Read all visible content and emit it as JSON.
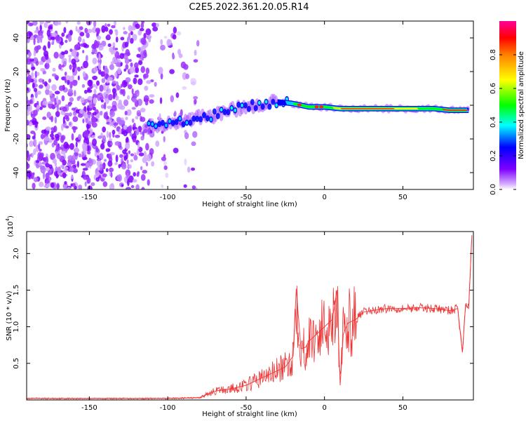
{
  "page": {
    "title": "C2E5.2022.361.20.05.R14"
  },
  "chart_data": [
    {
      "type": "heatmap",
      "title": "C2E5.2022.361.20.05.R14",
      "xlabel": "Height of straight line (km)",
      "ylabel": "Frequency (Hz)",
      "xlim": [
        -190,
        95
      ],
      "ylim": [
        -50,
        50
      ],
      "xticks": [
        -150,
        -100,
        -50,
        0,
        50
      ],
      "yticks": [
        -40,
        -20,
        0,
        20,
        40
      ],
      "xtick_labels": [
        "-150",
        "-100",
        "-50",
        "0",
        "50"
      ],
      "ytick_labels": [
        "-40",
        "-20",
        "0",
        "20",
        "40"
      ],
      "colorbar": {
        "label": "Normalized spectral amplitude",
        "range": [
          0,
          1
        ],
        "ticks": [
          0.0,
          0.2,
          0.4,
          0.6,
          0.8
        ],
        "tick_labels": [
          "0.0",
          "0.2",
          "0.4",
          "0.6",
          "0.8"
        ],
        "colormap": [
          "#ffffff",
          "#7f00ff",
          "#0000ff",
          "#00ffff",
          "#00ff00",
          "#ffff00",
          "#ff7f00",
          "#ff0000",
          "#ff00aa"
        ]
      },
      "ridge": {
        "description_values_x": [
          -110,
          -100,
          -90,
          -80,
          -70,
          -60,
          -50,
          -40,
          -30,
          -20,
          -10,
          0,
          10,
          20,
          30,
          40,
          50,
          60,
          70,
          80,
          90
        ],
        "frequency_y": [
          -13,
          -11,
          -9,
          -7,
          -6,
          -3,
          -1,
          1,
          2,
          1,
          -1,
          -1,
          -2,
          -2,
          -2,
          -2,
          -2,
          -2,
          -2,
          -3,
          -3
        ]
      }
    },
    {
      "type": "line",
      "xlabel": "Height of straight line (km)",
      "ylabel": "SNR (10 * v/v)",
      "multiplier_label": "(x10",
      "multiplier_exponent": "4",
      "multiplier_close": ")",
      "xlim": [
        -190,
        95
      ],
      "ylim": [
        0,
        2.3
      ],
      "xticks": [
        -150,
        -100,
        -50,
        0,
        50
      ],
      "yticks": [
        0.5,
        1.0,
        1.5,
        2.0
      ],
      "xtick_labels": [
        "-150",
        "-100",
        "-50",
        "0",
        "50"
      ],
      "ytick_labels": [
        "0.5",
        "1.0",
        "1.5",
        "2.0"
      ],
      "series": [
        {
          "color": "#ee3333",
          "x": [
            -190,
            -150,
            -100,
            -80,
            -70,
            -60,
            -50,
            -40,
            -30,
            -25,
            -20,
            -18,
            -15,
            -12,
            -10,
            -5,
            0,
            5,
            8,
            10,
            12,
            15,
            20,
            25,
            30,
            40,
            50,
            60,
            70,
            80,
            85,
            88,
            90,
            92,
            94
          ],
          "values": [
            0.02,
            0.02,
            0.02,
            0.03,
            0.12,
            0.15,
            0.2,
            0.3,
            0.4,
            0.45,
            0.6,
            1.52,
            0.7,
            0.72,
            0.8,
            0.9,
            1.0,
            1.1,
            1.5,
            0.2,
            0.9,
            1.05,
            1.1,
            1.2,
            1.22,
            1.25,
            1.25,
            1.26,
            1.25,
            1.22,
            1.25,
            0.65,
            1.3,
            1.25,
            2.25
          ]
        }
      ]
    }
  ]
}
